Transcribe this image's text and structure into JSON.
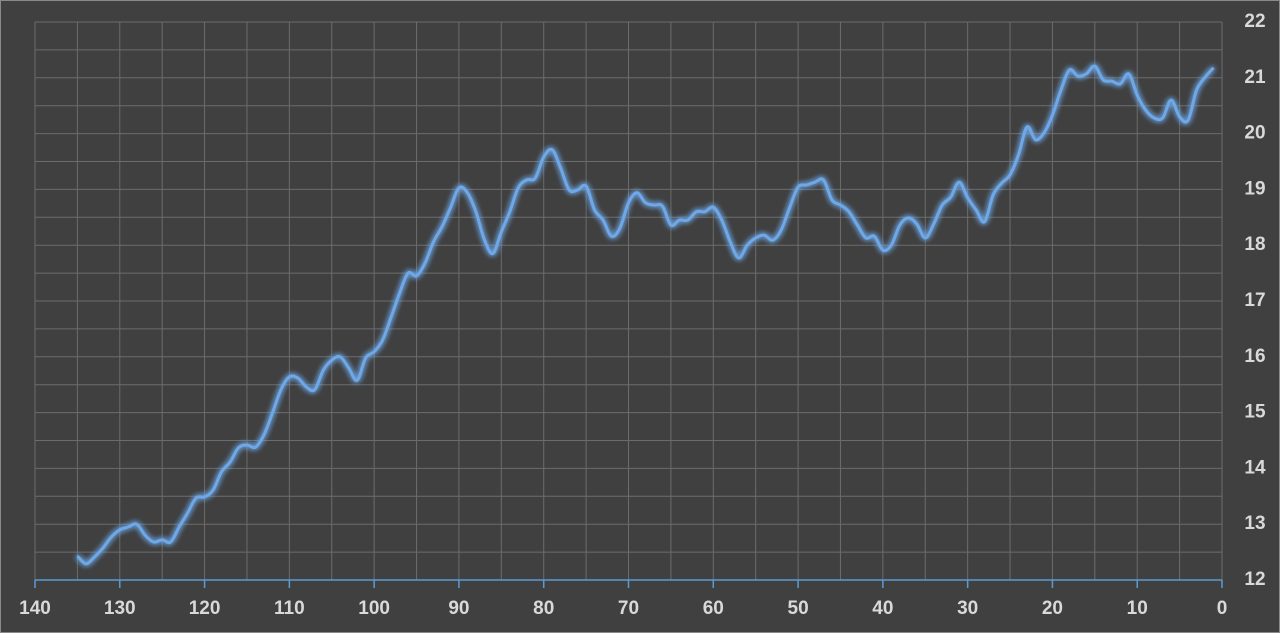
{
  "chart_data": {
    "type": "line",
    "x": [
      135,
      134,
      133,
      132,
      131,
      130,
      129,
      128,
      127,
      126,
      125,
      124,
      123,
      122,
      121,
      120,
      119,
      118,
      117,
      116,
      115,
      114,
      113,
      112,
      111,
      110,
      109,
      108,
      107,
      106,
      105,
      104,
      103,
      102,
      101,
      100,
      99,
      98,
      97,
      96,
      95,
      94,
      93,
      92,
      91,
      90,
      89,
      88,
      87,
      86,
      85,
      84,
      83,
      82,
      81,
      80,
      79,
      78,
      77,
      76,
      75,
      74,
      73,
      72,
      71,
      70,
      69,
      68,
      67,
      66,
      65,
      64,
      63,
      62,
      61,
      60,
      59,
      58,
      57,
      56,
      55,
      54,
      53,
      52,
      51,
      50,
      49,
      48,
      47,
      46,
      45,
      44,
      43,
      42,
      41,
      40,
      39,
      38,
      37,
      36,
      35,
      34,
      33,
      32,
      31,
      30,
      29,
      28,
      27,
      26,
      25,
      24,
      23,
      22,
      21,
      20,
      19,
      18,
      17,
      16,
      15,
      14,
      13,
      12,
      11,
      10,
      9,
      8,
      7,
      6,
      5,
      4,
      3,
      2,
      1
    ],
    "series": [
      {
        "color": "#6ea8e8",
        "values": [
          12.43,
          12.29,
          12.41,
          12.57,
          12.77,
          12.9,
          12.95,
          13.0,
          12.8,
          12.68,
          12.72,
          12.68,
          12.95,
          13.2,
          13.47,
          13.49,
          13.61,
          13.94,
          14.11,
          14.37,
          14.42,
          14.38,
          14.6,
          14.99,
          15.41,
          15.64,
          15.62,
          15.46,
          15.41,
          15.76,
          15.94,
          16.0,
          15.8,
          15.58,
          15.98,
          16.09,
          16.3,
          16.71,
          17.14,
          17.5,
          17.45,
          17.68,
          18.06,
          18.33,
          18.67,
          19.03,
          18.94,
          18.6,
          18.1,
          17.85,
          18.24,
          18.6,
          19.03,
          19.17,
          19.2,
          19.58,
          19.71,
          19.38,
          18.99,
          18.99,
          19.06,
          18.63,
          18.45,
          18.16,
          18.31,
          18.76,
          18.94,
          18.76,
          18.72,
          18.7,
          18.36,
          18.45,
          18.45,
          18.6,
          18.6,
          18.68,
          18.45,
          18.06,
          17.77,
          18.0,
          18.13,
          18.18,
          18.09,
          18.27,
          18.67,
          19.04,
          19.08,
          19.13,
          19.17,
          18.81,
          18.72,
          18.6,
          18.36,
          18.13,
          18.16,
          17.91,
          18.0,
          18.36,
          18.49,
          18.38,
          18.13,
          18.38,
          18.72,
          18.86,
          19.13,
          18.85,
          18.63,
          18.42,
          18.9,
          19.11,
          19.26,
          19.62,
          20.12,
          19.89,
          20.01,
          20.33,
          20.78,
          21.14,
          21.03,
          21.07,
          21.21,
          20.96,
          20.94,
          20.89,
          21.07,
          20.69,
          20.42,
          20.28,
          20.28,
          20.6,
          20.3,
          20.24,
          20.78,
          21.01,
          21.18
        ]
      }
    ],
    "xlim": [
      140,
      0
    ],
    "xticks": [
      140,
      130,
      120,
      110,
      100,
      90,
      80,
      70,
      60,
      50,
      40,
      30,
      20,
      10,
      0
    ],
    "x_minor_ticks": [
      135,
      125,
      115,
      105,
      95,
      85,
      75,
      65,
      55,
      45,
      35,
      25,
      15,
      5
    ],
    "ylim": [
      12,
      22
    ],
    "yticks": [
      12,
      13,
      14,
      15,
      16,
      17,
      18,
      19,
      20,
      21,
      22
    ],
    "y_minor_ticks": [
      12.5,
      13.5,
      14.5,
      15.5,
      16.5,
      17.5,
      18.5,
      19.5,
      20.5,
      21.5
    ],
    "grid": true,
    "y_axis_side": "right"
  }
}
